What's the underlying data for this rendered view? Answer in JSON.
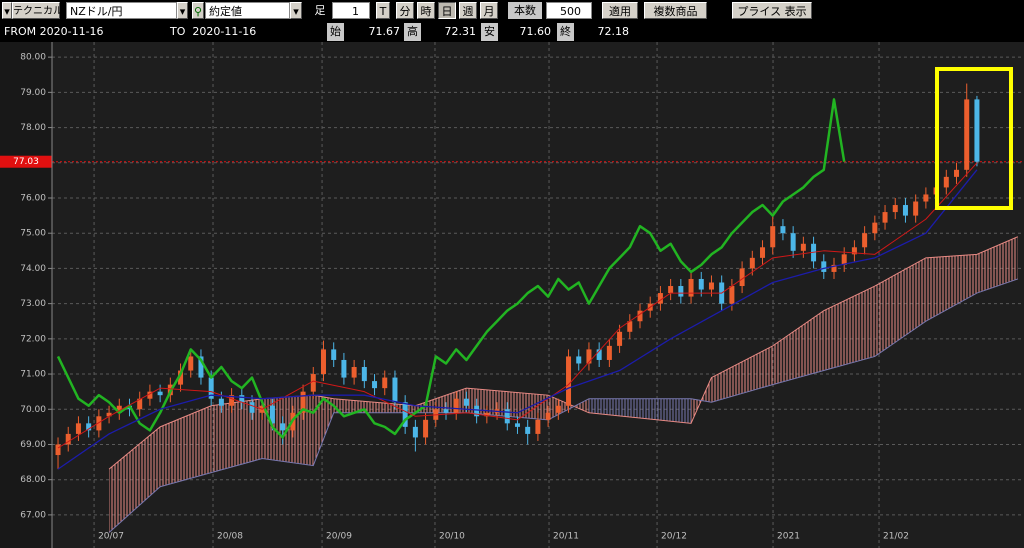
{
  "toolbar": {
    "technical": "テクニカル",
    "symbol": "NZドル/円",
    "price_type": "約定値",
    "bar_label": "足",
    "bar_value": "1",
    "periods": [
      "T",
      "分",
      "時",
      "日",
      "週",
      "月"
    ],
    "count_label": "本数",
    "count_value": "500",
    "apply": "適用",
    "multi": "複数商品",
    "price_display": "プライス 表示"
  },
  "info": {
    "from": "FROM 2020-11-16",
    "to": "TO  2020-11-16",
    "open_label": "始",
    "open": "71.67",
    "high_label": "高",
    "high": "72.31",
    "low_label": "安",
    "low": "71.60",
    "close_label": "終",
    "close": "72.18"
  },
  "chart_data": {
    "type": "candlestick",
    "open": [
      68.7,
      69.0,
      69.3,
      69.6,
      69.4,
      69.8,
      69.9,
      70.1,
      70.0,
      70.3,
      70.5,
      70.4,
      70.7,
      71.1,
      71.5,
      70.9,
      70.3,
      70.1,
      70.4,
      70.2,
      69.9,
      70.1,
      69.6,
      69.4,
      69.9,
      70.5,
      71.0,
      71.7,
      71.4,
      70.9,
      71.2,
      70.8,
      70.6,
      70.9,
      70.2,
      69.5,
      69.2,
      69.7,
      70.0,
      69.9,
      70.3,
      70.1,
      69.8,
      69.9,
      70.0,
      69.6,
      69.5,
      69.3,
      69.7,
      69.9,
      70.1,
      71.5,
      71.3,
      71.7,
      71.4,
      71.8,
      72.2,
      72.5,
      72.8,
      73.0,
      73.3,
      73.5,
      73.2,
      73.7,
      73.4,
      73.6,
      73.0,
      73.5,
      74.0,
      74.3,
      74.6,
      75.2,
      75.0,
      74.5,
      74.7,
      74.2,
      73.9,
      74.1,
      74.4,
      74.6,
      75.0,
      75.3,
      75.6,
      75.8,
      75.5,
      75.9,
      76.1,
      76.3,
      76.6,
      76.8,
      78.8
    ],
    "high": [
      69.2,
      69.5,
      69.8,
      69.8,
      70.0,
      70.1,
      70.3,
      70.3,
      70.5,
      70.7,
      70.7,
      70.9,
      71.3,
      71.7,
      71.7,
      71.1,
      70.5,
      70.6,
      70.6,
      70.4,
      70.3,
      70.3,
      69.8,
      70.1,
      70.7,
      71.2,
      71.95,
      71.9,
      71.6,
      71.4,
      71.4,
      71.0,
      71.1,
      71.1,
      70.4,
      69.7,
      69.9,
      70.2,
      70.2,
      70.5,
      70.5,
      70.3,
      70.1,
      70.2,
      70.2,
      69.8,
      69.7,
      69.9,
      70.1,
      70.3,
      71.7,
      71.7,
      71.9,
      71.9,
      72.0,
      72.4,
      72.7,
      73.0,
      73.2,
      73.5,
      73.7,
      73.7,
      73.9,
      73.9,
      73.8,
      73.8,
      73.7,
      74.2,
      74.5,
      74.8,
      75.5,
      75.4,
      75.2,
      74.9,
      74.9,
      74.4,
      74.3,
      74.6,
      74.8,
      75.2,
      75.5,
      75.8,
      76.0,
      76.0,
      76.1,
      76.3,
      76.5,
      76.8,
      77.0,
      79.25,
      78.9
    ],
    "low": [
      68.3,
      68.8,
      69.1,
      69.2,
      69.2,
      69.6,
      69.7,
      69.8,
      69.8,
      70.1,
      70.2,
      70.2,
      70.5,
      70.9,
      70.7,
      70.1,
      69.9,
      69.9,
      70.0,
      69.7,
      69.7,
      69.4,
      69.0,
      69.2,
      69.7,
      70.3,
      70.8,
      71.2,
      70.7,
      70.7,
      70.6,
      70.4,
      70.4,
      70.0,
      69.3,
      68.8,
      69.0,
      69.5,
      69.7,
      69.7,
      69.9,
      69.6,
      69.6,
      69.7,
      69.4,
      69.3,
      69.0,
      69.1,
      69.5,
      69.7,
      69.9,
      71.1,
      71.1,
      71.2,
      71.2,
      71.6,
      72.0,
      72.3,
      72.6,
      72.8,
      73.1,
      73.0,
      73.0,
      73.2,
      73.2,
      72.8,
      72.8,
      73.3,
      73.8,
      74.1,
      74.4,
      74.8,
      74.3,
      74.3,
      74.0,
      73.7,
      73.7,
      73.9,
      74.2,
      74.4,
      74.8,
      75.1,
      75.4,
      75.3,
      75.3,
      75.7,
      75.9,
      76.1,
      76.4,
      76.6,
      76.9
    ],
    "close": [
      69.0,
      69.3,
      69.6,
      69.4,
      69.8,
      69.9,
      70.1,
      70.0,
      70.3,
      70.5,
      70.4,
      70.7,
      71.1,
      71.5,
      70.9,
      70.3,
      70.1,
      70.4,
      70.2,
      69.9,
      70.1,
      69.6,
      69.4,
      69.9,
      70.5,
      71.0,
      71.7,
      71.4,
      70.9,
      71.2,
      70.8,
      70.6,
      70.9,
      70.2,
      69.5,
      69.2,
      69.7,
      70.0,
      69.9,
      70.3,
      70.1,
      69.8,
      69.9,
      70.0,
      69.6,
      69.5,
      69.3,
      69.7,
      69.9,
      70.1,
      71.5,
      71.3,
      71.7,
      71.4,
      71.8,
      72.2,
      72.5,
      72.8,
      73.0,
      73.3,
      73.5,
      73.2,
      73.7,
      73.4,
      73.6,
      73.0,
      73.5,
      74.0,
      74.3,
      74.6,
      75.2,
      75.0,
      74.5,
      74.7,
      74.2,
      73.9,
      74.1,
      74.4,
      74.6,
      75.0,
      75.3,
      75.6,
      75.8,
      75.5,
      75.9,
      76.1,
      76.3,
      76.6,
      76.8,
      78.8,
      77.03
    ],
    "up_color": "#ec5f2e",
    "down_color": "#4cb6e8",
    "lines": [
      {
        "color": "#22b422",
        "width": 2.5,
        "values": [
          71.5,
          70.9,
          70.3,
          70.1,
          70.4,
          70.2,
          69.9,
          70.1,
          69.6,
          69.4,
          69.9,
          70.5,
          71.0,
          71.7,
          71.4,
          70.9,
          71.2,
          70.8,
          70.6,
          70.9,
          70.2,
          69.5,
          69.2,
          69.7,
          70.0,
          69.9,
          70.3,
          70.1,
          69.8,
          69.9,
          70.0,
          69.6,
          69.5,
          69.3,
          69.7,
          69.9,
          70.1,
          71.5,
          71.3,
          71.7,
          71.4,
          71.8,
          72.2,
          72.5,
          72.8,
          73.0,
          73.3,
          73.5,
          73.2,
          73.7,
          73.4,
          73.6,
          73.0,
          73.5,
          74.0,
          74.3,
          74.6,
          75.2,
          75.0,
          74.5,
          74.7,
          74.2,
          73.9,
          74.1,
          74.4,
          74.6,
          75.0,
          75.3,
          75.6,
          75.8,
          75.5,
          75.9,
          76.1,
          76.3,
          76.6,
          76.8,
          78.8,
          77.03
        ]
      },
      {
        "color": "#d01818",
        "width": 1,
        "x": [
          0,
          5,
          10,
          15,
          20,
          25,
          30,
          35,
          40,
          45,
          50,
          55,
          60,
          65,
          70,
          75,
          80,
          85,
          90
        ],
        "values": [
          68.9,
          69.8,
          70.6,
          70.5,
          70.0,
          70.8,
          70.5,
          69.8,
          69.9,
          69.7,
          70.7,
          72.3,
          73.3,
          73.3,
          74.3,
          74.5,
          74.4,
          75.4,
          77.0
        ]
      },
      {
        "color": "#1c1caa",
        "width": 1.3,
        "x": [
          0,
          5,
          10,
          15,
          20,
          25,
          30,
          35,
          40,
          45,
          50,
          55,
          60,
          65,
          70,
          75,
          80,
          85,
          90
        ],
        "values": [
          68.3,
          69.3,
          70.0,
          70.4,
          70.3,
          70.4,
          70.4,
          70.1,
          70.0,
          69.9,
          70.6,
          71.1,
          72.0,
          72.8,
          73.6,
          74.0,
          74.3,
          75.0,
          76.8
        ]
      }
    ],
    "cloud": {
      "x": [
        5,
        10,
        15,
        20,
        25,
        27,
        35,
        40,
        48,
        52,
        62,
        64,
        70,
        75,
        80,
        85,
        90,
        94
      ],
      "span_a": [
        68.3,
        69.5,
        70.1,
        70.3,
        70.4,
        70.3,
        70.1,
        70.6,
        70.4,
        69.9,
        69.6,
        70.9,
        71.8,
        72.8,
        73.5,
        74.3,
        74.4,
        74.9
      ],
      "span_b": [
        66.5,
        67.8,
        68.2,
        68.6,
        68.4,
        69.9,
        69.9,
        69.9,
        69.7,
        70.3,
        70.3,
        70.2,
        70.7,
        71.1,
        71.5,
        72.5,
        73.3,
        73.7
      ],
      "up_color": "#e88a84",
      "down_color": "#7878b0"
    },
    "current_price": 77.03,
    "current_color": "#e01010",
    "xlim": [
      -0.59,
      94.61
    ],
    "xticks": [
      {
        "value": 3.53,
        "label": "20/07"
      },
      {
        "value": 15.18,
        "label": "20/08"
      },
      {
        "value": 25.86,
        "label": "20/09"
      },
      {
        "value": 36.92,
        "label": "20/10"
      },
      {
        "value": 48.09,
        "label": "20/11"
      },
      {
        "value": 58.67,
        "label": "20/12"
      },
      {
        "value": 70.03,
        "label": "2021"
      },
      {
        "value": 80.41,
        "label": "21/02"
      }
    ],
    "ylim": [
      66.06,
      80.43
    ],
    "yticks": [
      {
        "value": 67,
        "label": "67.00"
      },
      {
        "value": 68,
        "label": "68.00"
      },
      {
        "value": 69,
        "label": "69.00"
      },
      {
        "value": 70,
        "label": "70.00"
      },
      {
        "value": 71,
        "label": "71.00"
      },
      {
        "value": 72,
        "label": "72.00"
      },
      {
        "value": 73,
        "label": "73.00"
      },
      {
        "value": 74,
        "label": "74.00"
      },
      {
        "value": 75,
        "label": "75.00"
      },
      {
        "value": 76,
        "label": "76.00"
      },
      {
        "value": 77,
        "label": "77.00"
      },
      {
        "value": 78,
        "label": "78.00"
      },
      {
        "value": 79,
        "label": "79.00"
      },
      {
        "value": 80,
        "label": "80.00"
      }
    ],
    "grid": true
  }
}
